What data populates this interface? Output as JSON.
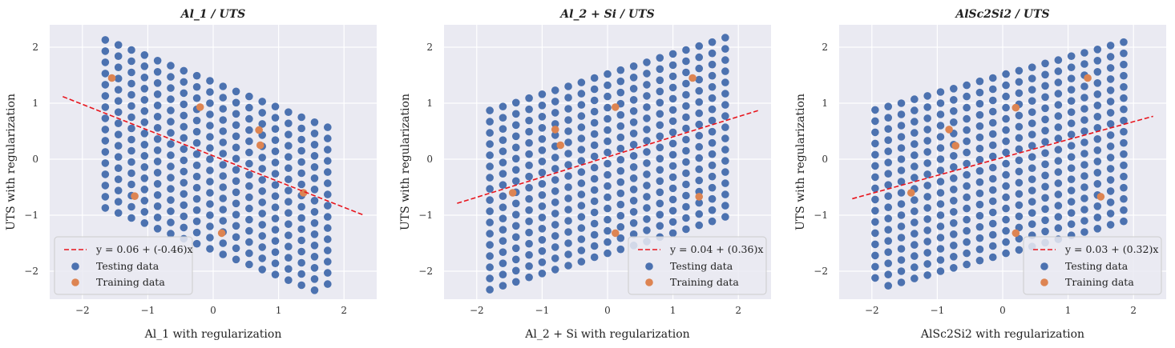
{
  "chart_data": [
    {
      "type": "scatter",
      "title": "Al_1 / UTS",
      "xlabel": "Al_1 with regularization",
      "ylabel": "UTS with regularization",
      "xlim": [
        -2.5,
        2.5
      ],
      "ylim": [
        -2.5,
        2.4
      ],
      "xticks": [
        -2,
        -1,
        0,
        1,
        2
      ],
      "yticks": [
        -2,
        -1,
        0,
        1,
        2
      ],
      "grid": true,
      "legend_position": "lower-left",
      "line": {
        "name": "y = 0.06 + (-0.46)x",
        "intercept": 0.06,
        "slope": -0.46,
        "x_range": [
          -2.3,
          2.3
        ],
        "color": "#e8141c"
      },
      "series": [
        {
          "name": "Testing data",
          "color": "#4c72b0",
          "generator": {
            "type": "lattice",
            "center": [
              0.05,
              -0.05
            ],
            "step": 0.2,
            "u_range": [
              -1.9,
              1.7
            ],
            "v_range": [
              -1.6,
              1.5
            ],
            "shear": -0.46,
            "clip_x": [
              -1.65,
              1.8
            ],
            "clip_y": [
              -2.35,
              2.2
            ]
          },
          "values": []
        },
        {
          "name": "Training data",
          "color": "#dd8452",
          "x": [
            -1.55,
            -0.2,
            0.7,
            -1.2,
            0.72,
            1.38,
            0.13
          ],
          "y": [
            1.45,
            0.93,
            0.52,
            -0.66,
            0.25,
            -0.6,
            -1.32
          ]
        }
      ]
    },
    {
      "type": "scatter",
      "title": "Al_2 + Si / UTS",
      "xlabel": "Al_2 + Si with regularization",
      "ylabel": "UTS with regularization",
      "xlim": [
        -2.5,
        2.5
      ],
      "ylim": [
        -2.5,
        2.4
      ],
      "xticks": [
        -2,
        -1,
        0,
        1,
        2
      ],
      "yticks": [
        -2,
        -1,
        0,
        1,
        2
      ],
      "grid": true,
      "legend_position": "lower-right",
      "line": {
        "name": "y = 0.04 + (0.36)x",
        "intercept": 0.04,
        "slope": 0.36,
        "x_range": [
          -2.3,
          2.3
        ],
        "color": "#e8141c"
      },
      "series": [
        {
          "name": "Testing data",
          "color": "#4c72b0",
          "generator": {
            "type": "lattice",
            "center": [
              -0.05,
              0.0
            ],
            "step": 0.2,
            "u_range": [
              -1.95,
              1.85
            ],
            "v_range": [
              -1.7,
              1.65
            ],
            "shear": 0.36,
            "clip_x": [
              -1.95,
              1.8
            ],
            "clip_y": [
              -2.35,
              2.2
            ]
          },
          "values": []
        },
        {
          "name": "Training data",
          "color": "#dd8452",
          "x": [
            1.3,
            0.12,
            -0.8,
            -0.72,
            -1.45,
            1.4,
            0.12
          ],
          "y": [
            1.45,
            0.93,
            0.53,
            0.25,
            -0.6,
            -0.67,
            -1.32
          ]
        }
      ]
    },
    {
      "type": "scatter",
      "title": "AlSc2Si2 / UTS",
      "xlabel": "AlSc2Si2 with regularization",
      "ylabel": "UTS with regularization",
      "xlim": [
        -2.5,
        2.5
      ],
      "ylim": [
        -2.5,
        2.4
      ],
      "xticks": [
        -2,
        -1,
        0,
        1,
        2
      ],
      "yticks": [
        -2,
        -1,
        0,
        1,
        2
      ],
      "grid": true,
      "legend_position": "lower-right",
      "line": {
        "name": "y = 0.03 + (0.32)x",
        "intercept": 0.03,
        "slope": 0.32,
        "x_range": [
          -2.3,
          2.3
        ],
        "color": "#e8141c"
      },
      "series": [
        {
          "name": "Testing data",
          "color": "#4c72b0",
          "generator": {
            "type": "lattice",
            "center": [
              0.0,
              0.0
            ],
            "step": 0.2,
            "u_range": [
              -1.95,
              1.9
            ],
            "v_range": [
              -1.7,
              1.65
            ],
            "shear": 0.32,
            "clip_x": [
              -1.95,
              1.9
            ],
            "clip_y": [
              -2.35,
              2.2
            ]
          },
          "values": []
        },
        {
          "name": "Training data",
          "color": "#dd8452",
          "x": [
            1.3,
            0.2,
            -0.82,
            -0.72,
            -1.4,
            1.5,
            0.2
          ],
          "y": [
            1.45,
            0.92,
            0.53,
            0.24,
            -0.6,
            -0.67,
            -1.32
          ]
        }
      ]
    }
  ]
}
